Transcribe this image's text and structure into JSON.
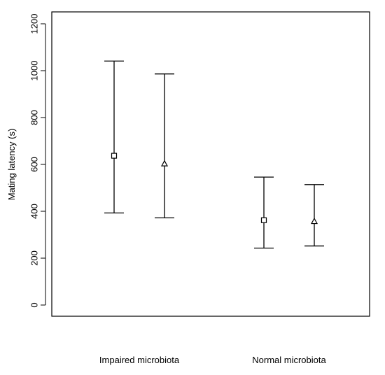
{
  "chart_data": {
    "type": "scatter",
    "title": "",
    "ylabel": "Mating latency (s)",
    "xlabel": "",
    "ylim": [
      0,
      1200
    ],
    "yticks": [
      0,
      200,
      400,
      600,
      800,
      1000,
      1200
    ],
    "grid": false,
    "categories": [
      "Impaired microbiota",
      "Normal microbiota"
    ],
    "series": [
      {
        "marker": "square",
        "values": [
          {
            "category": "Impaired microbiota",
            "mean": 637,
            "lower": 393,
            "upper": 1041
          },
          {
            "category": "Normal microbiota",
            "mean": 362,
            "lower": 243,
            "upper": 546
          }
        ]
      },
      {
        "marker": "triangle",
        "values": [
          {
            "category": "Impaired microbiota",
            "mean": 603,
            "lower": 372,
            "upper": 986
          },
          {
            "category": "Normal microbiota",
            "mean": 357,
            "lower": 252,
            "upper": 514
          }
        ]
      }
    ]
  }
}
